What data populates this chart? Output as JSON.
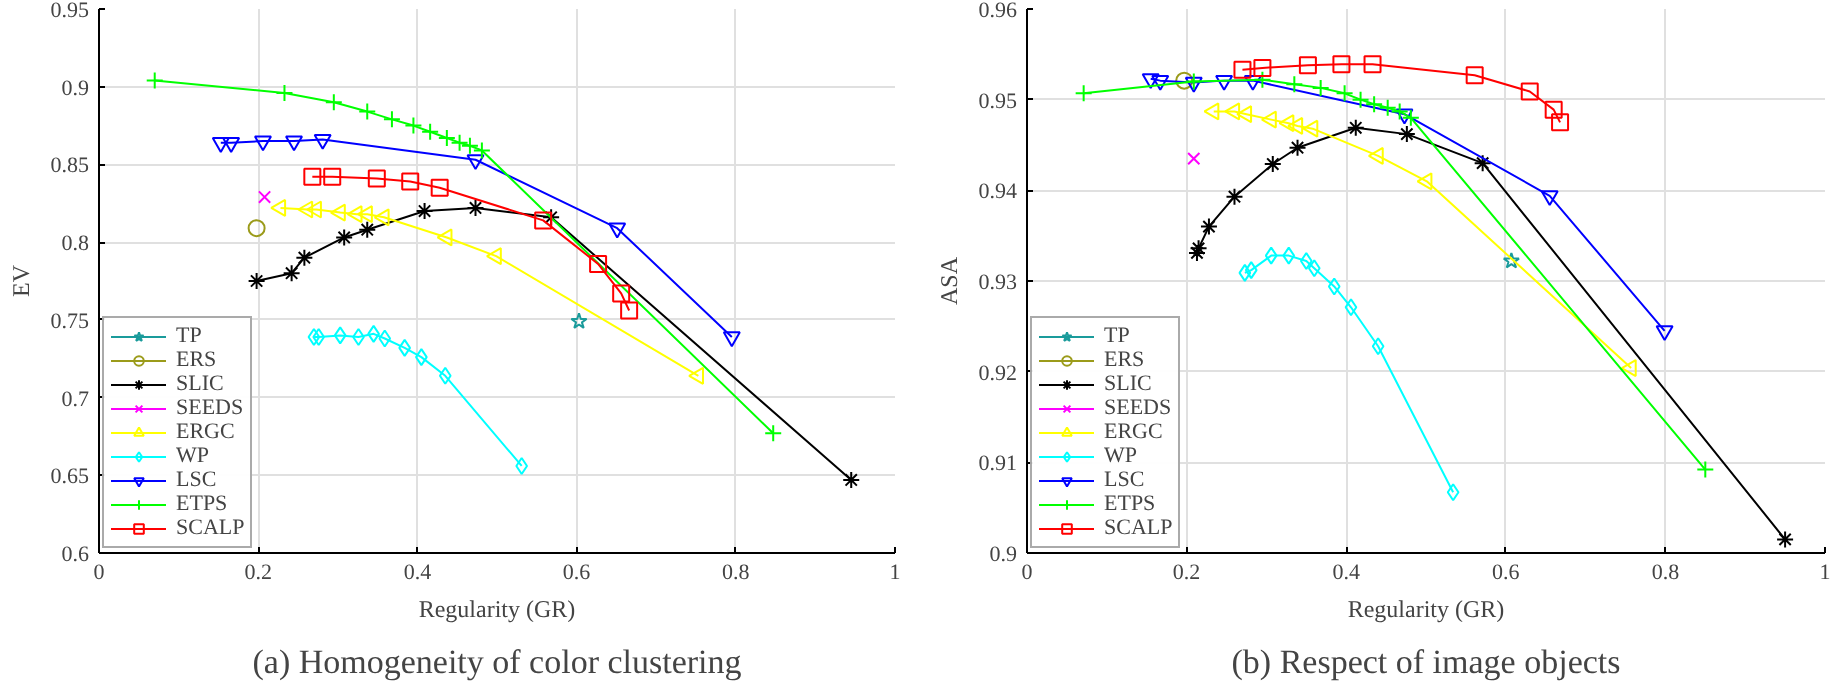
{
  "chart_data": [
    {
      "type": "line",
      "title": "(a) Homogeneity of color clustering",
      "xlabel": "Regularity (GR)",
      "ylabel": "EV",
      "xlim": [
        0,
        1
      ],
      "ylim": [
        0.6,
        0.95
      ],
      "xticks": [
        0,
        0.2,
        0.4,
        0.6,
        0.8,
        1
      ],
      "yticks": [
        0.6,
        0.65,
        0.7,
        0.75,
        0.8,
        0.85,
        0.9,
        0.95
      ],
      "grid": true,
      "legend": "bottom left",
      "series": [
        {
          "name": "TP",
          "color": "#1a9b9b",
          "marker": "star",
          "x": [
            0.603
          ],
          "values": [
            0.749
          ]
        },
        {
          "name": "ERS",
          "color": "#9b9b1a",
          "marker": "circle",
          "x": [
            0.198
          ],
          "values": [
            0.809
          ]
        },
        {
          "name": "SLIC",
          "color": "#000000",
          "marker": "cross",
          "x": [
            0.198,
            0.242,
            0.258,
            0.308,
            0.337,
            0.409,
            0.473,
            0.568,
            0.945
          ],
          "values": [
            0.775,
            0.78,
            0.79,
            0.803,
            0.808,
            0.82,
            0.822,
            0.816,
            0.647
          ]
        },
        {
          "name": "SEEDS",
          "color": "#ff00ff",
          "marker": "x",
          "x": [
            0.208
          ],
          "values": [
            0.829
          ]
        },
        {
          "name": "ERGC",
          "color": "#ffff00",
          "marker": "triangle_left",
          "x": [
            0.228,
            0.262,
            0.273,
            0.303,
            0.324,
            0.337,
            0.358,
            0.437,
            0.499,
            0.753
          ],
          "values": [
            0.822,
            0.821,
            0.821,
            0.819,
            0.818,
            0.818,
            0.816,
            0.803,
            0.791,
            0.714
          ]
        },
        {
          "name": "WP",
          "color": "#00ffff",
          "marker": "diamond",
          "x": [
            0.27,
            0.276,
            0.303,
            0.326,
            0.345,
            0.359,
            0.384,
            0.405,
            0.435,
            0.531
          ],
          "values": [
            0.739,
            0.739,
            0.74,
            0.739,
            0.741,
            0.738,
            0.732,
            0.726,
            0.714,
            0.656
          ]
        },
        {
          "name": "LSC",
          "color": "#0000ff",
          "marker": "triangle",
          "x": [
            0.153,
            0.166,
            0.206,
            0.245,
            0.281,
            0.473,
            0.651,
            0.795
          ],
          "values": [
            0.864,
            0.864,
            0.865,
            0.865,
            0.866,
            0.853,
            0.809,
            0.739
          ]
        },
        {
          "name": "ETPS",
          "color": "#00ff00",
          "marker": "plus",
          "x": [
            0.07,
            0.233,
            0.295,
            0.337,
            0.368,
            0.395,
            0.416,
            0.437,
            0.453,
            0.466,
            0.481,
            0.847
          ],
          "values": [
            0.904,
            0.896,
            0.89,
            0.884,
            0.879,
            0.875,
            0.871,
            0.867,
            0.864,
            0.862,
            0.859,
            0.677
          ]
        },
        {
          "name": "SCALP",
          "color": "#ff0000",
          "marker": "square",
          "x": [
            0.268,
            0.293,
            0.349,
            0.391,
            0.428,
            0.558,
            0.627,
            0.656,
            0.666
          ],
          "values": [
            0.842,
            0.842,
            0.841,
            0.839,
            0.835,
            0.814,
            0.786,
            0.767,
            0.756
          ]
        }
      ]
    },
    {
      "type": "line",
      "title": "(b) Respect of image objects",
      "xlabel": "Regularity (GR)",
      "ylabel": "ASA",
      "xlim": [
        0,
        1
      ],
      "ylim": [
        0.9,
        0.96
      ],
      "xticks": [
        0,
        0.2,
        0.4,
        0.6,
        0.8,
        1
      ],
      "yticks": [
        0.9,
        0.91,
        0.92,
        0.93,
        0.94,
        0.95,
        0.96
      ],
      "grid": true,
      "legend": "bottom left",
      "series": [
        {
          "name": "TP",
          "color": "#1a9b9b",
          "marker": "star",
          "x": [
            0.607
          ],
          "values": [
            0.9322
          ]
        },
        {
          "name": "ERS",
          "color": "#9b9b1a",
          "marker": "circle",
          "x": [
            0.197
          ],
          "values": [
            0.9521
          ]
        },
        {
          "name": "SLIC",
          "color": "#000000",
          "marker": "cross",
          "x": [
            0.213,
            0.215,
            0.228,
            0.26,
            0.308,
            0.339,
            0.412,
            0.476,
            0.571,
            0.95
          ],
          "values": [
            0.9331,
            0.9336,
            0.936,
            0.9393,
            0.9429,
            0.9447,
            0.9469,
            0.9462,
            0.943,
            0.9015
          ]
        },
        {
          "name": "SEEDS",
          "color": "#ff00ff",
          "marker": "x",
          "x": [
            0.209
          ],
          "values": [
            0.9435
          ]
        },
        {
          "name": "ERGC",
          "color": "#ffff00",
          "marker": "triangle_left",
          "x": [
            0.234,
            0.26,
            0.275,
            0.306,
            0.328,
            0.339,
            0.358,
            0.44,
            0.501,
            0.757
          ],
          "values": [
            0.9487,
            0.9487,
            0.9484,
            0.9478,
            0.9474,
            0.9471,
            0.9468,
            0.9438,
            0.941,
            0.9204
          ]
        },
        {
          "name": "WP",
          "color": "#00ffff",
          "marker": "diamond",
          "x": [
            0.273,
            0.281,
            0.306,
            0.328,
            0.35,
            0.36,
            0.385,
            0.406,
            0.44,
            0.534
          ],
          "values": [
            0.9309,
            0.9312,
            0.9328,
            0.9328,
            0.9322,
            0.9314,
            0.9294,
            0.9271,
            0.9228,
            0.9067
          ]
        },
        {
          "name": "LSC",
          "color": "#0000ff",
          "marker": "triangle",
          "x": [
            0.155,
            0.167,
            0.209,
            0.247,
            0.283,
            0.473,
            0.655,
            0.799
          ],
          "values": [
            0.9523,
            0.9521,
            0.9519,
            0.9521,
            0.9521,
            0.9484,
            0.9394,
            0.9245
          ]
        },
        {
          "name": "ETPS",
          "color": "#00ff00",
          "marker": "plus",
          "x": [
            0.071,
            0.209,
            0.295,
            0.335,
            0.368,
            0.398,
            0.418,
            0.435,
            0.452,
            0.467,
            0.481,
            0.85
          ],
          "values": [
            0.9507,
            0.952,
            0.9522,
            0.9517,
            0.9513,
            0.9507,
            0.95,
            0.9495,
            0.9491,
            0.9487,
            0.948,
            0.9092
          ]
        },
        {
          "name": "SCALP",
          "color": "#ff0000",
          "marker": "square",
          "x": [
            0.27,
            0.295,
            0.352,
            0.394,
            0.433,
            0.561,
            0.63,
            0.66,
            0.668
          ],
          "values": [
            0.9533,
            0.9535,
            0.9538,
            0.9539,
            0.9539,
            0.9527,
            0.9509,
            0.9489,
            0.9475
          ]
        }
      ]
    }
  ]
}
